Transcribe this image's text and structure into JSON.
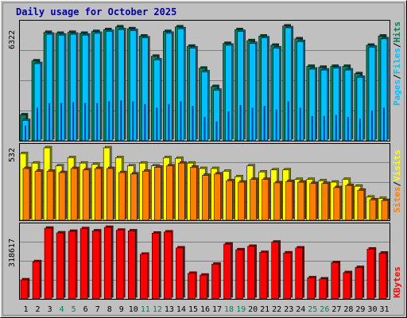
{
  "title": "Daily usage for October 2025",
  "colors": {
    "background": "#C0C0C0",
    "title": "#0000A0",
    "hits": "#00805C",
    "files": "#00C0FF",
    "pages": "#00C0FF",
    "visits": "#FFFF00",
    "sites": "#FF8000",
    "kbytes": "#FF0000",
    "weekend_day": "#00805C",
    "weekday": "#000000"
  },
  "chart_data": [
    {
      "type": "bar",
      "title": "Daily usage for October 2025",
      "categories": [
        "1",
        "2",
        "3",
        "4",
        "5",
        "6",
        "7",
        "8",
        "9",
        "10",
        "11",
        "12",
        "13",
        "14",
        "15",
        "16",
        "17",
        "18",
        "19",
        "20",
        "21",
        "22",
        "23",
        "24",
        "25",
        "26",
        "27",
        "28",
        "29",
        "30",
        "31"
      ],
      "weekend_days": [
        "4",
        "5",
        "11",
        "12",
        "18",
        "19",
        "25",
        "26"
      ],
      "ymax_label": "6322",
      "ylim": [
        0,
        6322
      ],
      "legend": [
        {
          "name": "Pages",
          "color": "#00C0FF"
        },
        {
          "name": "Files",
          "color": "#00C0FF"
        },
        {
          "name": "Hits",
          "color": "#00805C"
        }
      ],
      "series": [
        {
          "name": "Hits",
          "values": [
            1410,
            4350,
            5900,
            5850,
            5900,
            5850,
            5950,
            6050,
            6200,
            6100,
            5700,
            4600,
            5950,
            6200,
            5150,
            3950,
            2950,
            5300,
            6050,
            5450,
            5700,
            5200,
            6250,
            5550,
            4050,
            4000,
            4050,
            4050,
            3650,
            5200,
            5700
          ]
        },
        {
          "name": "Files",
          "values": [
            1100,
            4200,
            5800,
            5750,
            5800,
            5750,
            5850,
            5950,
            6050,
            6000,
            5600,
            4400,
            5850,
            6100,
            5050,
            3750,
            2750,
            5200,
            5950,
            5300,
            5600,
            5050,
            6150,
            5400,
            3900,
            3850,
            3950,
            3850,
            3450,
            5100,
            5550
          ]
        },
        {
          "name": "Pages",
          "values": [
            820,
            1800,
            2050,
            2050,
            2100,
            2050,
            2050,
            2150,
            2200,
            2150,
            2000,
            1800,
            2000,
            2150,
            1900,
            1300,
            1050,
            1600,
            1950,
            1800,
            1900,
            1700,
            2150,
            1800,
            1350,
            1350,
            1400,
            1300,
            1200,
            1650,
            1800
          ]
        }
      ]
    },
    {
      "type": "bar",
      "categories": [
        "1",
        "2",
        "3",
        "4",
        "5",
        "6",
        "7",
        "8",
        "9",
        "10",
        "11",
        "12",
        "13",
        "14",
        "15",
        "16",
        "17",
        "18",
        "19",
        "20",
        "21",
        "22",
        "23",
        "24",
        "25",
        "26",
        "27",
        "28",
        "29",
        "30",
        "31"
      ],
      "ymax_label": "532",
      "ylim": [
        0,
        532
      ],
      "legend": [
        {
          "name": "Sites",
          "color": "#FF8000"
        },
        {
          "name": "Visits",
          "color": "#FFFF00"
        }
      ],
      "series": [
        {
          "name": "Visits",
          "values": [
            490,
            420,
            532,
            400,
            460,
            420,
            410,
            532,
            460,
            400,
            420,
            400,
            460,
            455,
            420,
            380,
            380,
            360,
            320,
            400,
            355,
            370,
            370,
            300,
            300,
            290,
            280,
            300,
            250,
            170,
            160
          ]
        },
        {
          "name": "Sites",
          "values": [
            380,
            360,
            360,
            350,
            380,
            370,
            380,
            380,
            350,
            340,
            360,
            390,
            400,
            420,
            390,
            330,
            340,
            290,
            280,
            300,
            300,
            275,
            285,
            280,
            270,
            270,
            240,
            255,
            220,
            150,
            145
          ]
        }
      ]
    },
    {
      "type": "bar",
      "categories": [
        "1",
        "2",
        "3",
        "4",
        "5",
        "6",
        "7",
        "8",
        "9",
        "10",
        "11",
        "12",
        "13",
        "14",
        "15",
        "16",
        "17",
        "18",
        "19",
        "20",
        "21",
        "22",
        "23",
        "24",
        "25",
        "26",
        "27",
        "28",
        "29",
        "30",
        "31"
      ],
      "ymax_label": "318617",
      "ylim": [
        0,
        318617
      ],
      "legend": [
        {
          "name": "KBytes",
          "color": "#FF0000"
        }
      ],
      "series": [
        {
          "name": "KBytes",
          "values": [
            85000,
            166000,
            315000,
            294000,
            301000,
            313000,
            303000,
            318617,
            306000,
            303000,
            199000,
            293000,
            298000,
            227000,
            114000,
            106000,
            155000,
            244000,
            219000,
            234000,
            207000,
            253000,
            205000,
            227000,
            94000,
            89000,
            162000,
            117000,
            140000,
            222000,
            204000
          ]
        }
      ]
    }
  ]
}
